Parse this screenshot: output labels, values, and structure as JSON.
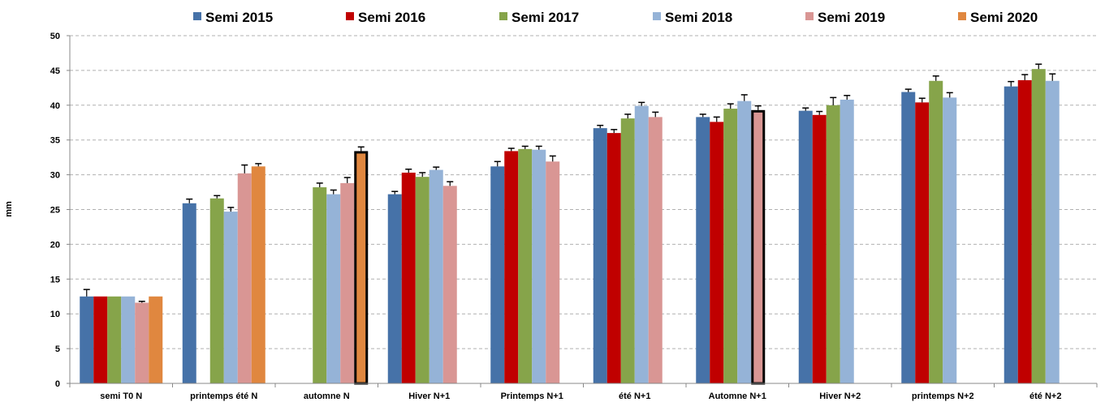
{
  "chart_data": {
    "type": "bar",
    "title": "",
    "xlabel": "",
    "ylabel": "mm",
    "ylim": [
      0,
      50
    ],
    "yticks": [
      0,
      5,
      10,
      15,
      20,
      25,
      30,
      35,
      40,
      45,
      50
    ],
    "grid": true,
    "legend_position": "top",
    "categories": [
      "semi T0 N",
      "printemps été N",
      "automne N",
      "Hiver N+1",
      "Printemps N+1",
      "été N+1",
      "Automne N+1",
      "Hiver N+2",
      "printemps N+2",
      "été N+2"
    ],
    "series": [
      {
        "name": "Semi 2015",
        "color": "#4672A8",
        "values": [
          12.5,
          25.9,
          null,
          27.2,
          31.2,
          36.7,
          38.3,
          39.2,
          41.9,
          42.7
        ],
        "errors": [
          1.0,
          0.6,
          null,
          0.4,
          0.7,
          0.4,
          0.4,
          0.4,
          0.4,
          0.7
        ]
      },
      {
        "name": "Semi 2016",
        "color": "#C00000",
        "values": [
          12.5,
          null,
          null,
          30.3,
          33.4,
          36.0,
          37.6,
          38.6,
          40.4,
          43.6
        ],
        "errors": [
          0,
          null,
          null,
          0.5,
          0.4,
          0.5,
          0.7,
          0.5,
          0.6,
          0.8
        ]
      },
      {
        "name": "Semi 2017",
        "color": "#86A44A",
        "values": [
          12.5,
          26.6,
          28.2,
          29.7,
          33.7,
          38.1,
          39.5,
          40.0,
          43.5,
          45.2
        ],
        "errors": [
          0,
          0.4,
          0.6,
          0.6,
          0.4,
          0.6,
          0.7,
          1.1,
          0.7,
          0.7
        ]
      },
      {
        "name": "Semi 2018",
        "color": "#95B3D7",
        "values": [
          12.5,
          24.7,
          27.2,
          30.7,
          33.6,
          39.9,
          40.6,
          40.8,
          41.1,
          43.5
        ],
        "errors": [
          0,
          0.6,
          0.6,
          0.4,
          0.5,
          0.5,
          0.9,
          0.6,
          0.7,
          1.0
        ]
      },
      {
        "name": "Semi 2019",
        "color": "#D99694",
        "values": [
          11.6,
          30.2,
          28.8,
          28.4,
          31.9,
          38.3,
          39.3,
          null,
          null,
          null
        ],
        "errors": [
          0.2,
          1.2,
          0.8,
          0.6,
          0.8,
          0.7,
          0.6,
          null,
          null,
          null
        ],
        "highlight": [
          false,
          false,
          false,
          false,
          false,
          false,
          true,
          false,
          false,
          false
        ]
      },
      {
        "name": "Semi 2020",
        "color": "#E0873F",
        "values": [
          12.5,
          31.2,
          33.4,
          null,
          null,
          null,
          null,
          null,
          null,
          null
        ],
        "errors": [
          0,
          0.4,
          0.6,
          null,
          null,
          null,
          null,
          null,
          null,
          null
        ],
        "highlight": [
          false,
          false,
          true,
          false,
          false,
          false,
          false,
          false,
          false,
          false
        ]
      }
    ]
  }
}
